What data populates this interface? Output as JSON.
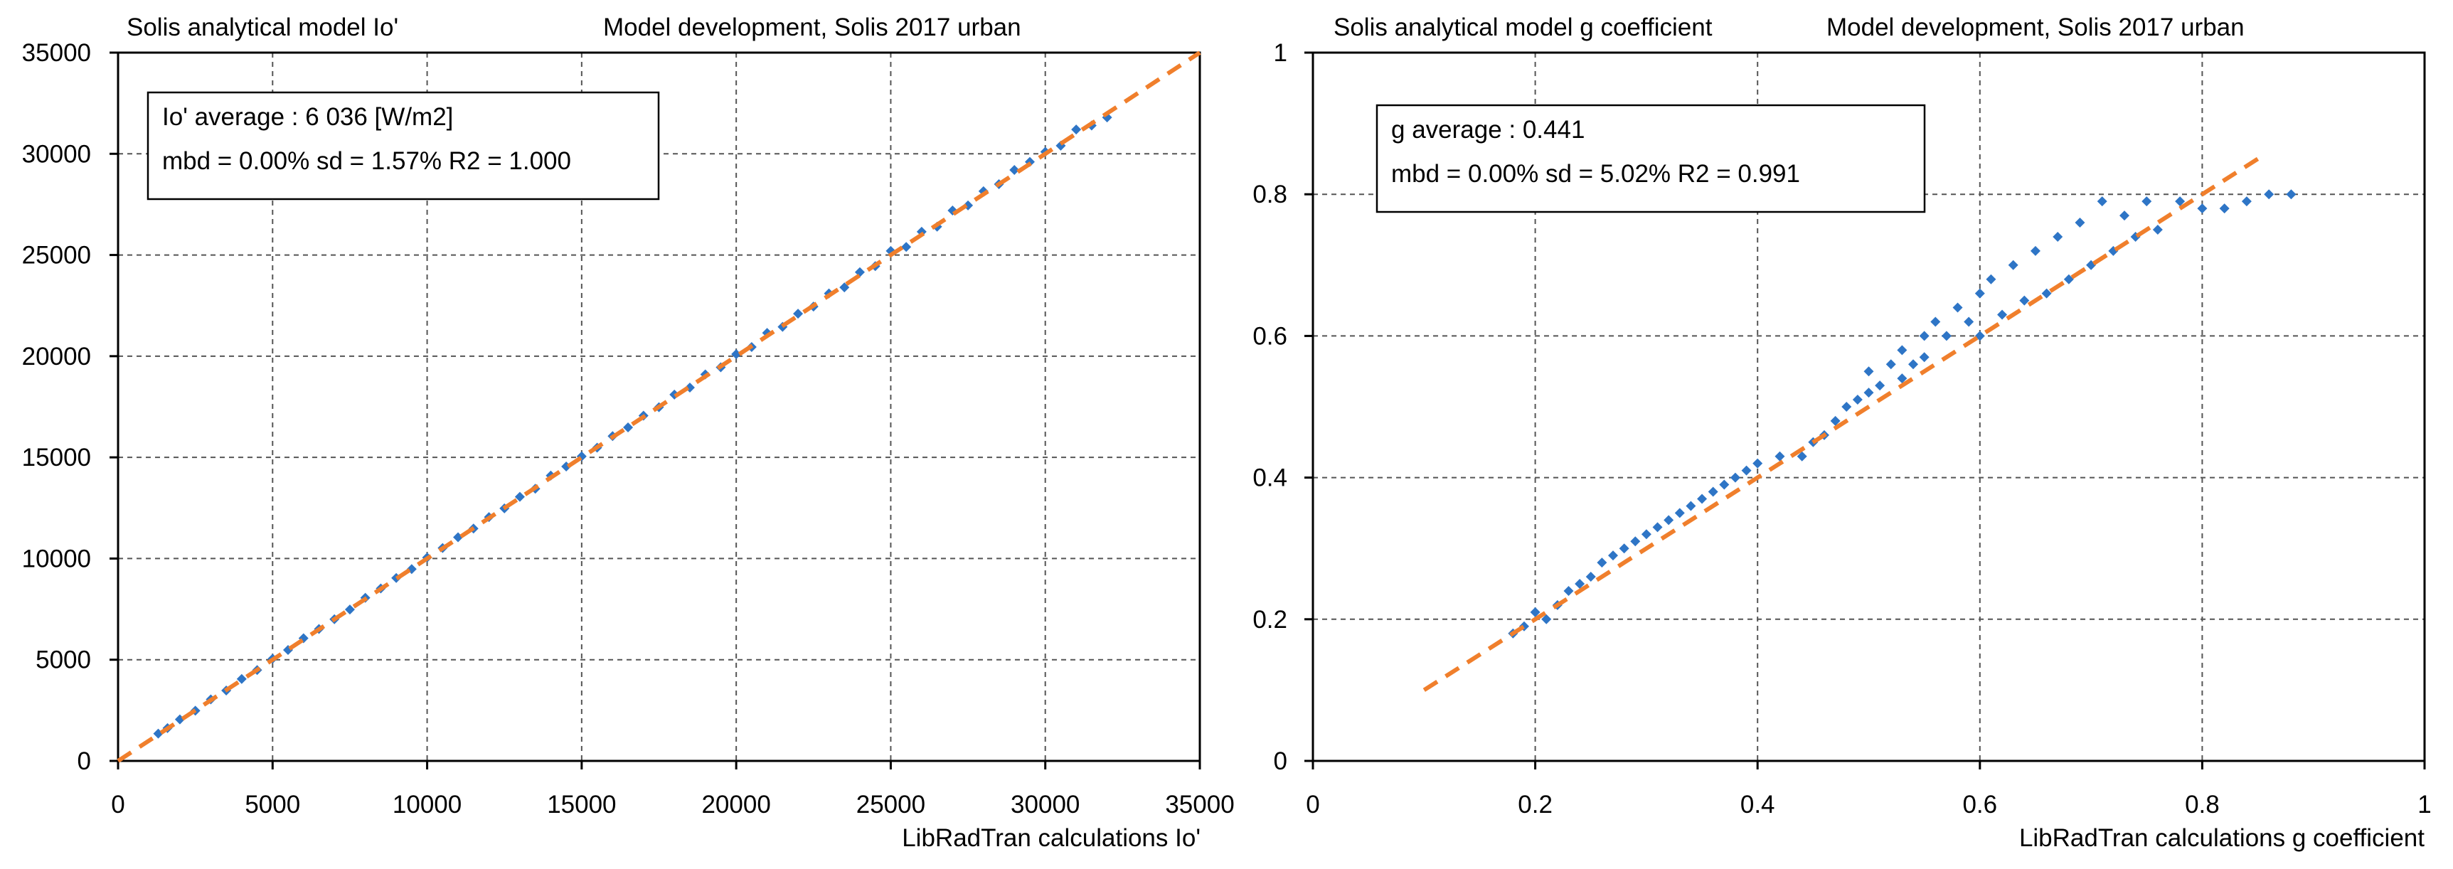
{
  "chart_data": [
    {
      "type": "scatter",
      "title": "Solis analytical model Io'",
      "subtitle": "Model development, Solis 2017  urban",
      "xlabel": "LibRadTran calculations Io'",
      "ylabel": "",
      "xlim": [
        0,
        35000
      ],
      "ylim": [
        0,
        35000
      ],
      "xticks": [
        0,
        5000,
        10000,
        15000,
        20000,
        25000,
        30000,
        35000
      ],
      "yticks": [
        0,
        5000,
        10000,
        15000,
        20000,
        25000,
        30000,
        35000
      ],
      "grid": true,
      "annotation": {
        "line1": "Io' average : 6 036 [W/m2]",
        "line2": "mbd = 0.00%  sd = 1.57%  R2 = 1.000"
      },
      "series": [
        {
          "name": "data",
          "color": "#2e75c6",
          "points": [
            [
              1300,
              1350
            ],
            [
              1600,
              1620
            ],
            [
              2000,
              2050
            ],
            [
              2500,
              2480
            ],
            [
              3000,
              3040
            ],
            [
              3500,
              3480
            ],
            [
              4000,
              4050
            ],
            [
              4500,
              4490
            ],
            [
              5000,
              5050
            ],
            [
              5500,
              5480
            ],
            [
              6000,
              6060
            ],
            [
              6500,
              6520
            ],
            [
              7000,
              7000
            ],
            [
              7500,
              7480
            ],
            [
              8000,
              8060
            ],
            [
              8500,
              8520
            ],
            [
              9000,
              9040
            ],
            [
              9500,
              9480
            ],
            [
              10000,
              10050
            ],
            [
              10500,
              10520
            ],
            [
              11000,
              11050
            ],
            [
              11500,
              11480
            ],
            [
              12000,
              12050
            ],
            [
              12500,
              12480
            ],
            [
              13000,
              13050
            ],
            [
              13500,
              13450
            ],
            [
              14000,
              14100
            ],
            [
              14500,
              14550
            ],
            [
              15000,
              15050
            ],
            [
              15500,
              15480
            ],
            [
              16000,
              16050
            ],
            [
              16500,
              16480
            ],
            [
              17000,
              17060
            ],
            [
              17500,
              17480
            ],
            [
              18000,
              18100
            ],
            [
              18500,
              18450
            ],
            [
              19000,
              19100
            ],
            [
              19500,
              19450
            ],
            [
              20000,
              20100
            ],
            [
              20500,
              20450
            ],
            [
              21000,
              21150
            ],
            [
              21500,
              21450
            ],
            [
              22000,
              22100
            ],
            [
              22500,
              22450
            ],
            [
              23000,
              23100
            ],
            [
              23500,
              23400
            ],
            [
              24000,
              24150
            ],
            [
              24500,
              24450
            ],
            [
              25000,
              25200
            ],
            [
              25500,
              25400
            ],
            [
              26000,
              26150
            ],
            [
              26500,
              26400
            ],
            [
              27000,
              27200
            ],
            [
              27500,
              27450
            ],
            [
              28000,
              28150
            ],
            [
              28500,
              28500
            ],
            [
              29000,
              29200
            ],
            [
              29500,
              29600
            ],
            [
              30000,
              30100
            ],
            [
              30500,
              30400
            ],
            [
              31000,
              31200
            ],
            [
              31500,
              31400
            ],
            [
              32000,
              31800
            ]
          ]
        },
        {
          "name": "1:1 line",
          "color": "#f07f2c",
          "style": "dashed",
          "points": [
            [
              0,
              0
            ],
            [
              35000,
              35000
            ]
          ]
        }
      ]
    },
    {
      "type": "scatter",
      "title": "Solis analytical model g coefficient",
      "subtitle": "Model development, Solis 2017  urban",
      "xlabel": "LibRadTran calculations g coefficient",
      "ylabel": "",
      "xlim": [
        0,
        1
      ],
      "ylim": [
        0,
        1
      ],
      "xticks": [
        0,
        0.2,
        0.4,
        0.6,
        0.8,
        1
      ],
      "yticks": [
        0,
        0.2,
        0.4,
        0.6,
        0.8,
        1
      ],
      "grid": true,
      "annotation": {
        "line1": "g average : 0.441",
        "line2": "mbd = 0.00%  sd = 5.02%  R2 = 0.991"
      },
      "series": [
        {
          "name": "data",
          "color": "#2e75c6",
          "points": [
            [
              0.18,
              0.18
            ],
            [
              0.19,
              0.19
            ],
            [
              0.2,
              0.21
            ],
            [
              0.21,
              0.2
            ],
            [
              0.22,
              0.22
            ],
            [
              0.23,
              0.24
            ],
            [
              0.24,
              0.25
            ],
            [
              0.25,
              0.26
            ],
            [
              0.26,
              0.28
            ],
            [
              0.27,
              0.29
            ],
            [
              0.28,
              0.3
            ],
            [
              0.29,
              0.31
            ],
            [
              0.3,
              0.32
            ],
            [
              0.31,
              0.33
            ],
            [
              0.32,
              0.34
            ],
            [
              0.33,
              0.35
            ],
            [
              0.34,
              0.36
            ],
            [
              0.35,
              0.37
            ],
            [
              0.36,
              0.38
            ],
            [
              0.37,
              0.39
            ],
            [
              0.38,
              0.4
            ],
            [
              0.39,
              0.41
            ],
            [
              0.4,
              0.42
            ],
            [
              0.42,
              0.43
            ],
            [
              0.44,
              0.43
            ],
            [
              0.45,
              0.45
            ],
            [
              0.46,
              0.46
            ],
            [
              0.47,
              0.48
            ],
            [
              0.48,
              0.5
            ],
            [
              0.49,
              0.51
            ],
            [
              0.5,
              0.52
            ],
            [
              0.5,
              0.55
            ],
            [
              0.51,
              0.53
            ],
            [
              0.52,
              0.56
            ],
            [
              0.53,
              0.54
            ],
            [
              0.53,
              0.58
            ],
            [
              0.54,
              0.56
            ],
            [
              0.55,
              0.6
            ],
            [
              0.55,
              0.57
            ],
            [
              0.56,
              0.62
            ],
            [
              0.57,
              0.6
            ],
            [
              0.58,
              0.64
            ],
            [
              0.59,
              0.62
            ],
            [
              0.6,
              0.66
            ],
            [
              0.6,
              0.6
            ],
            [
              0.61,
              0.68
            ],
            [
              0.62,
              0.63
            ],
            [
              0.63,
              0.7
            ],
            [
              0.64,
              0.65
            ],
            [
              0.65,
              0.72
            ],
            [
              0.66,
              0.66
            ],
            [
              0.67,
              0.74
            ],
            [
              0.68,
              0.68
            ],
            [
              0.69,
              0.76
            ],
            [
              0.7,
              0.7
            ],
            [
              0.71,
              0.79
            ],
            [
              0.72,
              0.72
            ],
            [
              0.73,
              0.77
            ],
            [
              0.74,
              0.74
            ],
            [
              0.75,
              0.79
            ],
            [
              0.76,
              0.75
            ],
            [
              0.78,
              0.79
            ],
            [
              0.8,
              0.78
            ],
            [
              0.82,
              0.78
            ],
            [
              0.84,
              0.79
            ],
            [
              0.86,
              0.8
            ],
            [
              0.88,
              0.8
            ]
          ]
        },
        {
          "name": "1:1 line",
          "color": "#f07f2c",
          "style": "dashed",
          "points": [
            [
              0.1,
              0.1
            ],
            [
              0.85,
              0.85
            ]
          ]
        }
      ]
    }
  ]
}
